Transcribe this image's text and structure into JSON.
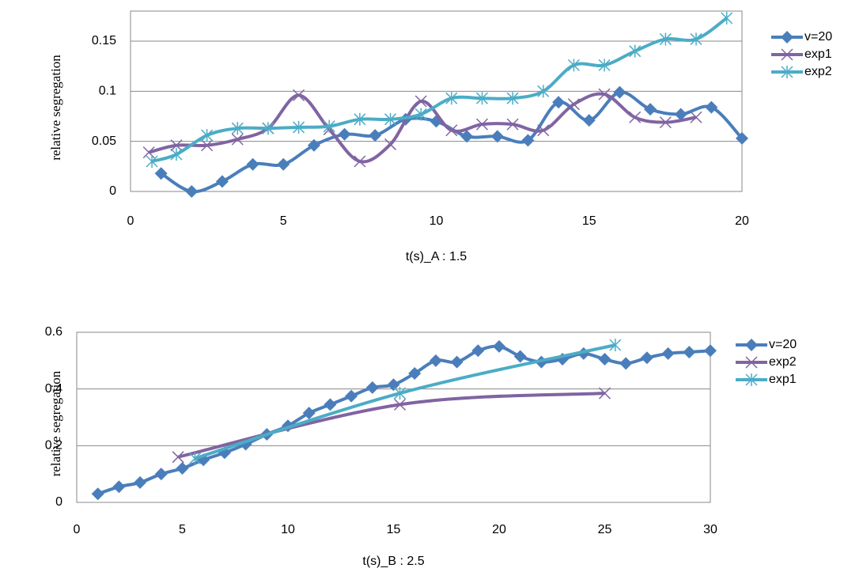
{
  "chart_data": [
    {
      "type": "line",
      "x_label": "t(s)_A : 1.5",
      "y_label": "relative segregation",
      "xlim": [
        0,
        20
      ],
      "xticks": [
        0,
        5,
        10,
        15,
        20
      ],
      "ylim": [
        0,
        0.18
      ],
      "yticks": [
        0,
        0.05,
        0.1,
        0.15
      ],
      "grid": true,
      "series": [
        {
          "name": "v=20",
          "color": "#4a7ebb",
          "marker": "diamond",
          "x": [
            1,
            2,
            3,
            4,
            5,
            6,
            7,
            8,
            9,
            10,
            11,
            12,
            13,
            14,
            15,
            16,
            17,
            18,
            19,
            20
          ],
          "values": [
            0.018,
            0,
            0.01,
            0.027,
            0.027,
            0.046,
            0.057,
            0.056,
            0.072,
            0.07,
            0.055,
            0.055,
            0.051,
            0.089,
            0.071,
            0.099,
            0.082,
            0.077,
            0.084,
            0.053
          ]
        },
        {
          "name": "exp1",
          "color": "#8064a2",
          "marker": "x",
          "x": [
            0.6,
            1.5,
            2.5,
            3.5,
            4.5,
            5.5,
            6.5,
            7.5,
            8.5,
            9.5,
            10.5,
            11.5,
            12.5,
            13.5,
            14.5,
            15.5,
            16.5,
            17.5,
            18.5
          ],
          "values": [
            0.039,
            0.046,
            0.046,
            0.052,
            0.063,
            0.096,
            0.062,
            0.03,
            0.047,
            0.09,
            0.061,
            0.067,
            0.067,
            0.061,
            0.087,
            0.097,
            0.074,
            0.069,
            0.074
          ]
        },
        {
          "name": "exp2",
          "color": "#4bacc6",
          "marker": "star",
          "x": [
            0.7,
            1.5,
            2.5,
            3.5,
            4.5,
            5.5,
            6.5,
            7.5,
            8.5,
            9.5,
            10.5,
            11.5,
            12.5,
            13.5,
            14.5,
            15.5,
            16.5,
            17.5,
            18.5,
            19.5
          ],
          "values": [
            0.03,
            0.037,
            0.056,
            0.063,
            0.063,
            0.064,
            0.065,
            0.072,
            0.072,
            0.077,
            0.093,
            0.093,
            0.093,
            0.1,
            0.126,
            0.126,
            0.14,
            0.152,
            0.152,
            0.173
          ]
        }
      ]
    },
    {
      "type": "line",
      "x_label": "t(s)_B : 2.5",
      "y_label": "relative segregation",
      "xlim": [
        0,
        30
      ],
      "xticks": [
        0,
        5,
        10,
        15,
        20,
        25,
        30
      ],
      "ylim": [
        0,
        0.6
      ],
      "yticks": [
        0,
        0.2,
        0.4,
        0.6
      ],
      "grid": true,
      "series": [
        {
          "name": "v=20",
          "color": "#4a7ebb",
          "marker": "diamond",
          "x": [
            1,
            2,
            3,
            4,
            5,
            6,
            7,
            8,
            9,
            10,
            11,
            12,
            13,
            14,
            15,
            16,
            17,
            18,
            19,
            20,
            21,
            22,
            23,
            24,
            25,
            26,
            27,
            28,
            29,
            30
          ],
          "values": [
            0.03,
            0.055,
            0.07,
            0.1,
            0.12,
            0.15,
            0.175,
            0.205,
            0.24,
            0.27,
            0.315,
            0.345,
            0.375,
            0.405,
            0.415,
            0.455,
            0.5,
            0.495,
            0.535,
            0.55,
            0.515,
            0.495,
            0.505,
            0.525,
            0.505,
            0.49,
            0.51,
            0.525,
            0.53,
            0.535
          ]
        },
        {
          "name": "exp2",
          "color": "#8064a2",
          "marker": "x",
          "x": [
            4.8,
            15.3,
            25
          ],
          "values": [
            0.16,
            0.345,
            0.385
          ]
        },
        {
          "name": "exp1",
          "color": "#4bacc6",
          "marker": "star",
          "x": [
            5.6,
            15.3,
            25.5
          ],
          "values": [
            0.155,
            0.385,
            0.555
          ]
        }
      ]
    }
  ]
}
